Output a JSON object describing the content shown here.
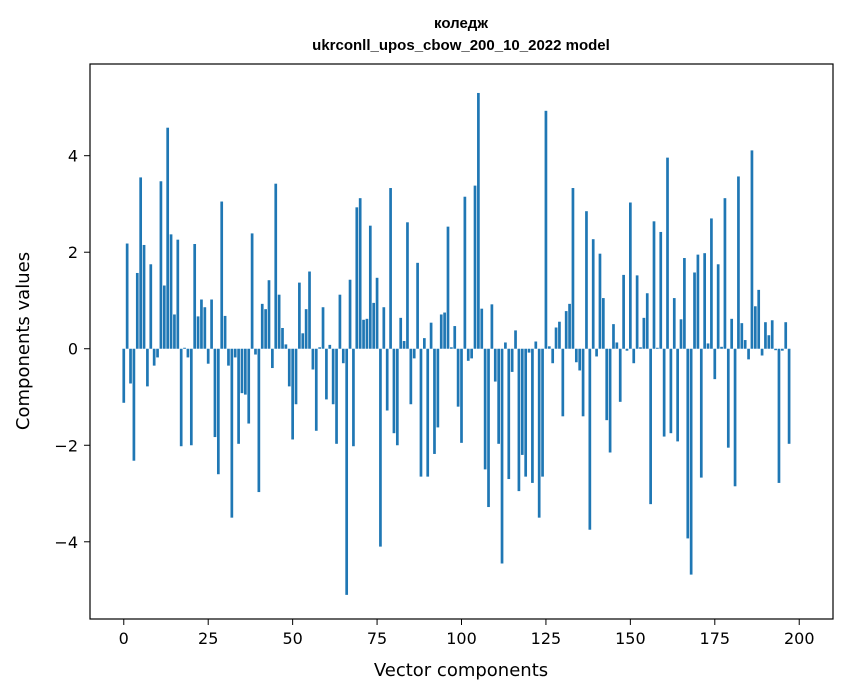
{
  "chart_data": {
    "type": "bar",
    "title": "коледж",
    "subtitle": "ukrconll_upos_cbow_200_10_2022 model",
    "xlabel": "Vector components",
    "ylabel": "Components values",
    "xlim": [
      -10,
      210
    ],
    "ylim": [
      -5.6,
      5.9
    ],
    "xticks": [
      0,
      25,
      50,
      75,
      100,
      125,
      150,
      175,
      200
    ],
    "yticks": [
      -4,
      -2,
      0,
      2,
      4
    ],
    "xtick_labels": [
      "0",
      "25",
      "50",
      "75",
      "100",
      "125",
      "150",
      "175",
      "200"
    ],
    "ytick_labels": [
      "−4",
      "−2",
      "0",
      "2",
      "4"
    ],
    "grid": false,
    "bar_color": "#1f77b4",
    "values": [
      -1.12,
      2.18,
      -0.72,
      -2.32,
      1.57,
      3.55,
      2.15,
      -0.78,
      1.75,
      -0.35,
      -0.18,
      3.47,
      1.31,
      4.58,
      2.37,
      0.71,
      2.26,
      -2.02,
      0.02,
      -0.18,
      -2.0,
      2.17,
      0.67,
      1.02,
      0.86,
      -0.31,
      1.02,
      -1.83,
      -2.6,
      3.05,
      0.68,
      -0.35,
      -3.5,
      -0.18,
      -1.97,
      -0.92,
      -0.95,
      -1.55,
      2.39,
      -0.12,
      -2.97,
      0.93,
      0.82,
      1.42,
      -0.4,
      3.42,
      1.12,
      0.43,
      0.09,
      -0.78,
      -1.88,
      -1.15,
      1.37,
      0.32,
      0.82,
      1.6,
      -0.43,
      -1.7,
      0.03,
      0.86,
      -1.05,
      0.08,
      -1.15,
      -1.97,
      1.12,
      -0.3,
      -5.1,
      1.43,
      -2.02,
      2.93,
      3.12,
      0.6,
      0.62,
      2.55,
      0.95,
      1.47,
      -4.1,
      0.86,
      -1.28,
      3.33,
      -1.75,
      -2.0,
      0.64,
      0.16,
      2.62,
      -1.15,
      -0.2,
      1.78,
      -2.65,
      0.22,
      -2.65,
      0.54,
      -2.18,
      -1.63,
      0.71,
      0.75,
      2.53,
      0.03,
      0.47,
      -1.2,
      -1.95,
      3.15,
      -0.25,
      -0.2,
      3.38,
      5.3,
      0.83,
      -2.5,
      -3.28,
      0.92,
      -0.68,
      -1.97,
      -4.45,
      0.13,
      -2.7,
      -0.48,
      0.38,
      -2.95,
      -2.2,
      -2.65,
      -0.08,
      -2.78,
      0.15,
      -3.5,
      -2.65,
      4.93,
      0.05,
      -0.3,
      0.44,
      0.56,
      -1.4,
      0.78,
      0.93,
      3.33,
      -0.28,
      -0.45,
      -1.4,
      2.85,
      -3.75,
      2.27,
      -0.16,
      1.97,
      1.05,
      -1.48,
      -2.15,
      0.51,
      0.13,
      -1.1,
      1.53,
      -0.04,
      3.03,
      -0.3,
      1.52,
      0.03,
      0.64,
      1.15,
      -3.22,
      2.64,
      0.02,
      2.42,
      -1.82,
      3.96,
      -1.75,
      1.05,
      -1.92,
      0.61,
      1.88,
      -3.93,
      -4.68,
      1.58,
      1.95,
      -2.67,
      1.98,
      0.11,
      2.7,
      -0.63,
      1.75,
      0.04,
      3.12,
      -2.05,
      0.62,
      -2.85,
      3.57,
      0.53,
      0.18,
      -0.22,
      4.11,
      0.88,
      1.22,
      -0.14,
      0.55,
      0.28,
      0.59,
      -0.03,
      -2.78,
      -0.04,
      0.55,
      -1.97
    ]
  }
}
